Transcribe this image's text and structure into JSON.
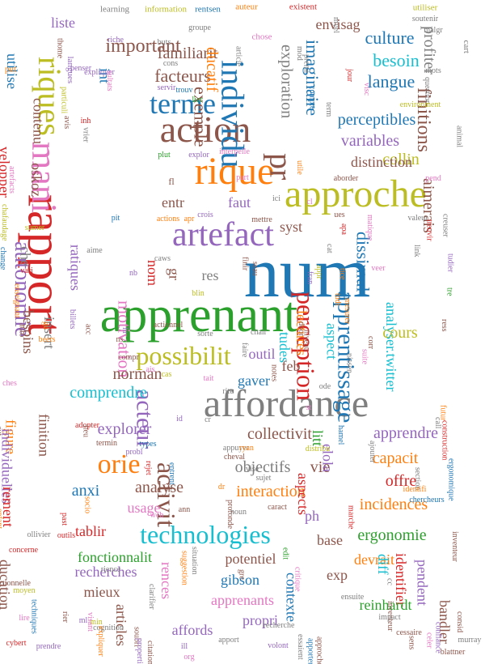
{
  "title": "",
  "palette": {
    "blue": "#1f77b4",
    "orange": "#ff7f0e",
    "green": "#2ca02c",
    "red": "#d62728",
    "purple": "#9467bd",
    "brown": "#8c564b",
    "pink": "#e377c2",
    "gray": "#7f7f7f",
    "olive": "#bcbd22",
    "cyan": "#17becf"
  },
  "words": [
    {
      "text": "num",
      "color": "blue"
    },
    {
      "text": "apprenant",
      "color": "green"
    },
    {
      "text": "rapport",
      "color": "red"
    },
    {
      "text": "affordance",
      "color": "gray"
    },
    {
      "text": "approche",
      "color": "olive"
    },
    {
      "text": "rique",
      "color": "orange"
    },
    {
      "text": "artefact",
      "color": "purple"
    },
    {
      "text": "action",
      "color": "brown"
    },
    {
      "text": "individu",
      "color": "blue"
    },
    {
      "text": "mani",
      "color": "pink"
    },
    {
      "text": "technologies",
      "color": "cyan"
    },
    {
      "text": "possibilit",
      "color": "olive"
    },
    {
      "text": "riques",
      "color": "olive"
    },
    {
      "text": "terme",
      "color": "blue"
    },
    {
      "text": "pr",
      "color": "brown"
    },
    {
      "text": "perception",
      "color": "red"
    },
    {
      "text": "apprentissage",
      "color": "blue"
    },
    {
      "text": "activit",
      "color": "brown"
    },
    {
      "text": "autonomie",
      "color": "purple"
    },
    {
      "text": "orie",
      "color": "orange"
    },
    {
      "text": "acteur",
      "color": "purple"
    },
    {
      "text": "motivation",
      "color": "pink"
    },
    {
      "text": "facteurs",
      "color": "brown"
    },
    {
      "text": "exemple",
      "color": "brown"
    },
    {
      "text": "important",
      "color": "brown"
    },
    {
      "text": "familiarit",
      "color": "brown"
    },
    {
      "text": "culture",
      "color": "blue"
    },
    {
      "text": "besoin",
      "color": "cyan"
    },
    {
      "text": "langue",
      "color": "blue"
    },
    {
      "text": "perceptibles",
      "color": "blue"
    },
    {
      "text": "variables",
      "color": "purple"
    },
    {
      "text": "collin",
      "color": "olive"
    },
    {
      "text": "distinction",
      "color": "brown"
    },
    {
      "text": "finitions",
      "color": "brown"
    },
    {
      "text": "profiter",
      "color": "gray"
    },
    {
      "text": "aimerais",
      "color": "brown"
    },
    {
      "text": "imaginaire",
      "color": "blue"
    },
    {
      "text": "exploration",
      "color": "gray"
    },
    {
      "text": "envisag",
      "color": "brown"
    },
    {
      "text": "ducatif",
      "color": "orange"
    },
    {
      "text": "liste",
      "color": "purple"
    },
    {
      "text": "utilise",
      "color": "blue"
    },
    {
      "text": "contenu",
      "color": "brown"
    },
    {
      "text": "velopper",
      "color": "red"
    },
    {
      "text": "oskoz",
      "color": "brown"
    },
    {
      "text": "ratiques",
      "color": "purple"
    },
    {
      "text": "int",
      "color": "blue"
    },
    {
      "text": "entr",
      "color": "brown"
    },
    {
      "text": "faut",
      "color": "purple"
    },
    {
      "text": "syst",
      "color": "brown"
    },
    {
      "text": "dissimul",
      "color": "blue"
    },
    {
      "text": "res",
      "color": "gray"
    },
    {
      "text": "gr",
      "color": "brown"
    },
    {
      "text": "nom",
      "color": "red"
    },
    {
      "text": "analyser.twitter",
      "color": "cyan"
    },
    {
      "text": "lectures",
      "color": "orange"
    },
    {
      "text": "cours",
      "color": "olive"
    },
    {
      "text": "aspect",
      "color": "cyan"
    },
    {
      "text": "tudes",
      "color": "cyan"
    },
    {
      "text": "feb",
      "color": "brown"
    },
    {
      "text": "outil",
      "color": "purple"
    },
    {
      "text": "gaver",
      "color": "blue"
    },
    {
      "text": "norman",
      "color": "brown"
    },
    {
      "text": "besoins",
      "color": "brown"
    },
    {
      "text": "insert",
      "color": "gray"
    },
    {
      "text": "che",
      "color": "gray"
    },
    {
      "text": "comprendre",
      "color": "cyan"
    },
    {
      "text": "figure",
      "color": "orange"
    },
    {
      "text": "individuelles",
      "color": "purple"
    },
    {
      "text": "finition",
      "color": "brown"
    },
    {
      "text": "explorer",
      "color": "purple"
    },
    {
      "text": "collectivit",
      "color": "brown"
    },
    {
      "text": "apprendre",
      "color": "purple"
    },
    {
      "text": "capacit",
      "color": "orange"
    },
    {
      "text": "litt",
      "color": "green"
    },
    {
      "text": "vie",
      "color": "brown"
    },
    {
      "text": "objectifs",
      "color": "gray"
    },
    {
      "text": "elola",
      "color": "purple"
    },
    {
      "text": "offre",
      "color": "red"
    },
    {
      "text": "interaction",
      "color": "orange"
    },
    {
      "text": "aspects",
      "color": "red"
    },
    {
      "text": "incidences",
      "color": "orange"
    },
    {
      "text": "ergonomie",
      "color": "green"
    },
    {
      "text": "analyse",
      "color": "brown"
    },
    {
      "text": "usage",
      "color": "pink"
    },
    {
      "text": "anxi",
      "color": "blue"
    },
    {
      "text": "rement",
      "color": "red"
    },
    {
      "text": "tablir",
      "color": "red"
    },
    {
      "text": "fonctionnalit",
      "color": "green"
    },
    {
      "text": "recherches",
      "color": "purple"
    },
    {
      "text": "mieux",
      "color": "brown"
    },
    {
      "text": "articles",
      "color": "brown"
    },
    {
      "text": "affords",
      "color": "purple"
    },
    {
      "text": "rences",
      "color": "pink"
    },
    {
      "text": "potentiel",
      "color": "brown"
    },
    {
      "text": "gibson",
      "color": "blue"
    },
    {
      "text": "apprenants",
      "color": "pink"
    },
    {
      "text": "propri",
      "color": "purple"
    },
    {
      "text": "base",
      "color": "brown"
    },
    {
      "text": "ph",
      "color": "purple"
    },
    {
      "text": "devrait",
      "color": "orange"
    },
    {
      "text": "diff",
      "color": "cyan"
    },
    {
      "text": "exp",
      "color": "brown"
    },
    {
      "text": "contexte",
      "color": "blue"
    },
    {
      "text": "identifier",
      "color": "red"
    },
    {
      "text": "reinhardt",
      "color": "green"
    },
    {
      "text": "pendent",
      "color": "purple"
    },
    {
      "text": "bandler",
      "color": "brown"
    },
    {
      "text": "ducation",
      "color": "brown"
    },
    {
      "text": "learning",
      "color": "gray"
    },
    {
      "text": "information",
      "color": "olive"
    },
    {
      "text": "rentsen",
      "color": "blue"
    },
    {
      "text": "auteur",
      "color": "orange"
    },
    {
      "text": "existent",
      "color": "red"
    },
    {
      "text": "utiliser",
      "color": "olive"
    },
    {
      "text": "soutenir",
      "color": "gray"
    },
    {
      "text": "malgr",
      "color": "gray"
    },
    {
      "text": "cart",
      "color": "gray"
    },
    {
      "text": "catherine",
      "color": "red"
    },
    {
      "text": "thome",
      "color": "brown"
    },
    {
      "text": "riche",
      "color": "purple"
    },
    {
      "text": "buts",
      "color": "gray"
    },
    {
      "text": "groupe",
      "color": "gray"
    },
    {
      "text": "chose",
      "color": "pink"
    },
    {
      "text": "article",
      "color": "gray"
    },
    {
      "text": "cons",
      "color": "gray"
    },
    {
      "text": "myel",
      "color": "gray"
    },
    {
      "text": "jour",
      "color": "red"
    },
    {
      "text": "visc",
      "color": "pink"
    },
    {
      "text": "mots",
      "color": "gray"
    },
    {
      "text": "question",
      "color": "gray"
    },
    {
      "text": "environment",
      "color": "olive"
    },
    {
      "text": "animal",
      "color": "gray"
    },
    {
      "text": "mod",
      "color": "gray"
    },
    {
      "text": "premi",
      "color": "gray"
    },
    {
      "text": "compte",
      "color": "blue"
    },
    {
      "text": "term",
      "color": "gray"
    },
    {
      "text": "langues",
      "color": "purple"
    },
    {
      "text": "penser",
      "color": "purple"
    },
    {
      "text": "expliquer",
      "color": "purple"
    },
    {
      "text": "sultats",
      "color": "pink"
    },
    {
      "text": "particuli",
      "color": "olive"
    },
    {
      "text": "avis",
      "color": "brown"
    },
    {
      "text": "inh",
      "color": "red"
    },
    {
      "text": "vrier",
      "color": "gray"
    },
    {
      "text": "servir",
      "color": "purple"
    },
    {
      "text": "trouv",
      "color": "blue"
    },
    {
      "text": "lier",
      "color": "green"
    },
    {
      "text": "plut",
      "color": "green"
    },
    {
      "text": "explor",
      "color": "purple"
    },
    {
      "text": "interpelle",
      "color": "pink"
    },
    {
      "text": "artefacts",
      "color": "pink"
    },
    {
      "text": "holistique",
      "color": "blue"
    },
    {
      "text": "chafaudage",
      "color": "olive"
    },
    {
      "text": "manipuler",
      "color": "red"
    },
    {
      "text": "put",
      "color": "orange"
    },
    {
      "text": "utile",
      "color": "orange"
    },
    {
      "text": "aborder",
      "color": "brown"
    },
    {
      "text": "pend",
      "color": "pink"
    },
    {
      "text": "creuser",
      "color": "gray"
    },
    {
      "text": "treuvir",
      "color": "red"
    },
    {
      "text": "valeur",
      "color": "gray"
    },
    {
      "text": "link",
      "color": "gray"
    },
    {
      "text": "tudier",
      "color": "purple"
    },
    {
      "text": "sumer",
      "color": "olive"
    },
    {
      "text": "pit",
      "color": "blue"
    },
    {
      "text": "actions",
      "color": "orange"
    },
    {
      "text": "crois",
      "color": "purple"
    },
    {
      "text": "apr",
      "color": "orange"
    },
    {
      "text": "mettre",
      "color": "brown"
    },
    {
      "text": "ues",
      "color": "brown"
    },
    {
      "text": "matique",
      "color": "pink"
    },
    {
      "text": "apa",
      "color": "red"
    },
    {
      "text": "cat",
      "color": "gray"
    },
    {
      "text": "change",
      "color": "blue"
    },
    {
      "text": "aime",
      "color": "gray"
    },
    {
      "text": "caws",
      "color": "gray"
    },
    {
      "text": "enseignant",
      "color": "orange"
    },
    {
      "text": "vari",
      "color": "red"
    },
    {
      "text": "nb",
      "color": "purple"
    },
    {
      "text": "blin",
      "color": "olive"
    },
    {
      "text": "finir",
      "color": "brown"
    },
    {
      "text": "seau",
      "color": "brown"
    },
    {
      "text": "fran",
      "color": "purple"
    },
    {
      "text": "appr",
      "color": "olive"
    },
    {
      "text": "tice",
      "color": "orange"
    },
    {
      "text": "tudi",
      "color": "orange"
    },
    {
      "text": "veer",
      "color": "pink"
    },
    {
      "text": "mesurer",
      "color": "orange"
    },
    {
      "text": "tre",
      "color": "green"
    },
    {
      "text": "ress",
      "color": "brown"
    },
    {
      "text": "billets",
      "color": "purple"
    },
    {
      "text": "acc",
      "color": "brown"
    },
    {
      "text": "actionnel",
      "color": "brown"
    },
    {
      "text": "chair",
      "color": "gray"
    },
    {
      "text": "beers",
      "color": "orange"
    },
    {
      "text": "ressources",
      "color": "pink"
    },
    {
      "text": "auto",
      "color": "brown"
    },
    {
      "text": "gu",
      "color": "orange"
    },
    {
      "text": "lu",
      "color": "purple"
    },
    {
      "text": "sorte",
      "color": "gray"
    },
    {
      "text": "faire",
      "color": "gray"
    },
    {
      "text": "door",
      "color": "brown"
    },
    {
      "text": "niveau",
      "color": "brown"
    },
    {
      "text": "nissen",
      "color": "gray"
    },
    {
      "text": "suite",
      "color": "pink"
    },
    {
      "text": "corr",
      "color": "brown"
    },
    {
      "text": "compr",
      "color": "brown"
    },
    {
      "text": "ais",
      "color": "pink"
    },
    {
      "text": "cas",
      "color": "olive"
    },
    {
      "text": "notes",
      "color": "brown"
    },
    {
      "text": "ches",
      "color": "pink"
    },
    {
      "text": "tait",
      "color": "pink"
    },
    {
      "text": "rite",
      "color": "gray"
    },
    {
      "text": "futur",
      "color": "orange"
    },
    {
      "text": "call",
      "color": "gray"
    },
    {
      "text": "construction",
      "color": "red"
    },
    {
      "text": "ergonomique",
      "color": "blue"
    },
    {
      "text": "cut",
      "color": "brown"
    },
    {
      "text": "adopter",
      "color": "red"
    },
    {
      "text": "lieu",
      "color": "brown"
    },
    {
      "text": "termin",
      "color": "brown"
    },
    {
      "text": "types",
      "color": "blue"
    },
    {
      "text": "appuyer",
      "color": "gray"
    },
    {
      "text": "ryan",
      "color": "orange"
    },
    {
      "text": "distribu",
      "color": "olive"
    },
    {
      "text": "hamel",
      "color": "blue"
    },
    {
      "text": "ajouter",
      "color": "gray"
    },
    {
      "text": "section",
      "color": "gray"
    },
    {
      "text": "identifi",
      "color": "orange"
    },
    {
      "text": "chercheurs",
      "color": "blue"
    },
    {
      "text": "inventeur",
      "color": "brown"
    },
    {
      "text": "probl",
      "color": "purple"
    },
    {
      "text": "rejet",
      "color": "red"
    },
    {
      "text": "entrent",
      "color": "blue"
    },
    {
      "text": "sujet",
      "color": "gray"
    },
    {
      "text": "profonde",
      "color": "brown"
    },
    {
      "text": "caract",
      "color": "brown"
    },
    {
      "text": "socio",
      "color": "orange"
    },
    {
      "text": "web",
      "color": "pink"
    },
    {
      "text": "ann",
      "color": "brown"
    },
    {
      "text": "noun",
      "color": "gray"
    },
    {
      "text": "marche",
      "color": "red"
    },
    {
      "text": "enfant",
      "color": "orange"
    },
    {
      "text": "ollivier",
      "color": "gray"
    },
    {
      "text": "past",
      "color": "red"
    },
    {
      "text": "outils",
      "color": "red"
    },
    {
      "text": "concerne",
      "color": "red"
    },
    {
      "text": "actionnelle",
      "color": "brown"
    },
    {
      "text": "moyen",
      "color": "olive"
    },
    {
      "text": "techniques",
      "color": "blue"
    },
    {
      "text": "rier",
      "color": "brown"
    },
    {
      "text": "ml",
      "color": "purple"
    },
    {
      "text": "min",
      "color": "olive"
    },
    {
      "text": "suggestion",
      "color": "orange"
    },
    {
      "text": "situation",
      "color": "gray"
    },
    {
      "text": "gre",
      "color": "brown"
    },
    {
      "text": "edit",
      "color": "green"
    },
    {
      "text": "critique",
      "color": "pink"
    },
    {
      "text": "ensuite",
      "color": "gray"
    },
    {
      "text": "inventeur",
      "color": "brown"
    },
    {
      "text": "clarifier",
      "color": "gray"
    },
    {
      "text": "rience",
      "color": "gray"
    },
    {
      "text": "visant",
      "color": "pink"
    },
    {
      "text": "cognition",
      "color": "gray"
    },
    {
      "text": "expliquer",
      "color": "orange"
    },
    {
      "text": "soubri",
      "color": "brown"
    },
    {
      "text": "properties",
      "color": "purple"
    },
    {
      "text": "citation",
      "color": "brown"
    },
    {
      "text": "apport",
      "color": "gray"
    },
    {
      "text": "recherche",
      "color": "gray"
    },
    {
      "text": "volont",
      "color": "purple"
    },
    {
      "text": "essaient",
      "color": "gray"
    },
    {
      "text": "approches",
      "color": "brown"
    },
    {
      "text": "apporter",
      "color": "blue"
    },
    {
      "text": "impact",
      "color": "gray"
    },
    {
      "text": "cessaire",
      "color": "brown"
    },
    {
      "text": "sens",
      "color": "brown"
    },
    {
      "text": "celer",
      "color": "pink"
    },
    {
      "text": "confiance",
      "color": "purple"
    },
    {
      "text": "murray",
      "color": "gray"
    },
    {
      "text": "blattner",
      "color": "brown"
    },
    {
      "text": "consid",
      "color": "brown"
    },
    {
      "text": "lire",
      "color": "pink"
    },
    {
      "text": "cybert",
      "color": "red"
    },
    {
      "text": "prendre",
      "color": "purple"
    },
    {
      "text": "ill",
      "color": "purple"
    },
    {
      "text": "org",
      "color": "pink"
    },
    {
      "text": "cc",
      "color": "gray"
    },
    {
      "text": "dr",
      "color": "orange"
    },
    {
      "text": "fl",
      "color": "brown"
    },
    {
      "text": "part",
      "color": "pink"
    },
    {
      "text": "ici",
      "color": "gray"
    },
    {
      "text": "cl",
      "color": "pink"
    },
    {
      "text": "ns",
      "color": "brown"
    },
    {
      "text": "id",
      "color": "purple"
    },
    {
      "text": "cr",
      "color": "gray"
    },
    {
      "text": "st",
      "color": "pink"
    },
    {
      "text": "ode",
      "color": "gray"
    },
    {
      "text": "cheval",
      "color": "brown"
    },
    {
      "text": "vise",
      "color": "gray"
    }
  ]
}
